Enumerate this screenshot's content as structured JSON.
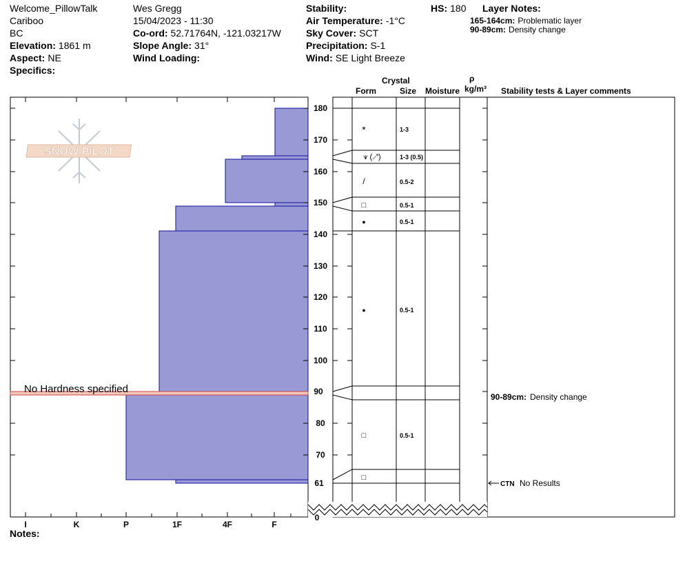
{
  "header": {
    "col1": {
      "location": "Welcome_PillowTalk",
      "range": "Cariboo",
      "state": "BC",
      "elevation_label": "Elevation:",
      "elevation_value": "1861 m",
      "aspect_label": "Aspect:",
      "aspect_value": "NE",
      "specifics_label": "Specifics:"
    },
    "col2": {
      "observer": "Wes Gregg",
      "datetime": "15/04/2023 - 11:30",
      "coord_label": "Co-ord:",
      "coord_value": "52.71764N, -121.03217W",
      "slope_label": "Slope Angle:",
      "slope_value": "31°",
      "wind_loading_label": "Wind Loading:"
    },
    "col3": {
      "stability_label": "Stability:",
      "air_temp_label": "Air Temperature:",
      "air_temp_value": "-1°C",
      "sky_label": "Sky Cover:",
      "sky_value": "SCT",
      "precip_label": "Precipitation:",
      "precip_value": "S-1",
      "wind_label": "Wind:",
      "wind_value": "SE Light Breeze"
    },
    "hs_label": "HS:",
    "hs_value": "180",
    "layer_notes_title": "Layer Notes:",
    "layer_notes": [
      {
        "range": "165-164cm:",
        "note": "Problematic layer"
      },
      {
        "range": "90-89cm:",
        "note": "Density change"
      }
    ]
  },
  "columns": {
    "crystal": "Crystal",
    "form": "Form",
    "size": "Size",
    "moisture": "Moisture",
    "rho": "ρ",
    "density_unit": "kg/m³",
    "stability": "Stability tests & Layer comments"
  },
  "logo_text": "SNOW PILOT",
  "hardness_note": "No Hardness specified",
  "hardness_labels": [
    "I",
    "K",
    "P",
    "1F",
    "4F",
    "F"
  ],
  "depth_ticks": [
    "180",
    "170",
    "160",
    "150",
    "140",
    "130",
    "120",
    "110",
    "100",
    "90",
    "80",
    "70",
    "61",
    "0"
  ],
  "sizes": [
    {
      "depth": "top",
      "text": "1-3"
    },
    {
      "depth": "165",
      "text": "1-3 (0.5)"
    },
    {
      "depth": "160",
      "text": "0.5-2"
    },
    {
      "depth": "150",
      "text": "0.5-1"
    },
    {
      "depth": "145",
      "text": "0.5-1"
    },
    {
      "depth": "115",
      "text": "0.5-1"
    },
    {
      "depth": "77",
      "text": "0.5-1"
    }
  ],
  "forms": {
    "f1": "*",
    "f2": "⩛ (↗)",
    "f3": "/",
    "f4": "□",
    "f5": "●",
    "f6": "●",
    "f7": "□",
    "f8": "□"
  },
  "comments": [
    {
      "label": "90-89cm:",
      "text": "Density change"
    },
    {
      "label": "CTN",
      "text": "No Results"
    }
  ],
  "notes_label": "Notes:",
  "colors": {
    "hardness_fill": "#9999d5",
    "hardness_edge": "#1010a0",
    "marker_line": "#cc4444"
  }
}
